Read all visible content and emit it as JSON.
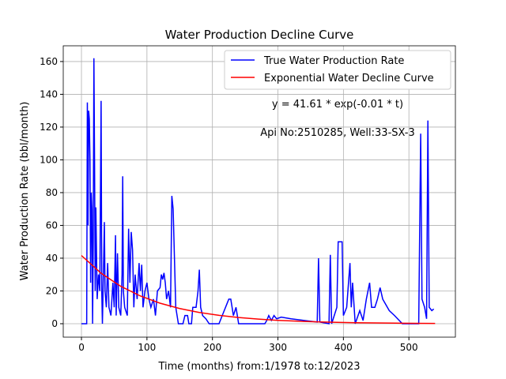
{
  "chart_data": {
    "type": "line",
    "title": "Water Production Decline Curve",
    "xlabel": "Time (months) from:1/1978 to:12/2023",
    "ylabel": "Water Production Rate (bbl/month)",
    "annotations": [
      "y = 41.61 * exp(-0.01 * t)",
      "Api No:2510285, Well:33-SX-3"
    ],
    "xlim": [
      -27.8,
      571
    ],
    "ylim": [
      -8.2,
      169.6
    ],
    "xticks": [
      0,
      100,
      200,
      300,
      400,
      500
    ],
    "yticks": [
      0,
      20,
      40,
      60,
      80,
      100,
      120,
      140,
      160
    ],
    "grid": true,
    "legend": "upper right",
    "series": [
      {
        "name": "True Water Production Rate",
        "color": "#0000ff",
        "x": [
          0,
          8,
          9,
          10,
          11,
          12,
          13,
          14,
          15,
          16,
          17,
          18,
          19,
          20,
          21,
          22,
          24,
          26,
          28,
          30,
          31,
          32,
          34,
          35,
          36,
          38,
          40,
          42,
          45,
          48,
          50,
          52,
          53,
          55,
          57,
          60,
          62,
          63,
          64,
          66,
          70,
          72,
          74,
          76,
          78,
          80,
          82,
          85,
          88,
          90,
          92,
          94,
          97,
          100,
          103,
          106,
          110,
          113,
          116,
          120,
          122,
          124,
          126,
          128,
          130,
          133,
          136,
          138,
          140,
          142,
          144,
          146,
          148,
          155,
          158,
          162,
          164,
          168,
          170,
          175,
          178,
          180,
          182,
          185,
          190,
          195,
          210,
          215,
          218,
          222,
          225,
          228,
          232,
          236,
          240,
          280,
          283,
          286,
          290,
          294,
          298,
          305,
          320,
          340,
          360,
          362,
          364,
          378,
          380,
          382,
          390,
          392,
          398,
          400,
          405,
          410,
          412,
          414,
          418,
          425,
          430,
          435,
          440,
          443,
          448,
          452,
          456,
          460,
          470,
          478,
          490,
          515,
          518,
          520,
          524,
          527,
          529,
          531,
          535,
          538
        ],
        "values": [
          0,
          0,
          135,
          60,
          130,
          125,
          100,
          25,
          80,
          70,
          0,
          50,
          162,
          100,
          20,
          71,
          15,
          30,
          20,
          136,
          20,
          0,
          40,
          62,
          20,
          10,
          37,
          10,
          5,
          25,
          10,
          54,
          5,
          43,
          10,
          5,
          30,
          90,
          20,
          10,
          5,
          58,
          25,
          56,
          45,
          10,
          30,
          15,
          37,
          20,
          36,
          10,
          20,
          25,
          15,
          10,
          15,
          5,
          20,
          22,
          30,
          27,
          31,
          25,
          15,
          20,
          10,
          78,
          70,
          40,
          10,
          5,
          0,
          0,
          5,
          5,
          0,
          0,
          10,
          10,
          20,
          33,
          10,
          5,
          3,
          0,
          0,
          5,
          8,
          12,
          15,
          15,
          5,
          10,
          0,
          0,
          2,
          5,
          2,
          5,
          3,
          4,
          3,
          2,
          1,
          40,
          1,
          0,
          42,
          0,
          10,
          50,
          50,
          5,
          10,
          37,
          10,
          25,
          0,
          8,
          2,
          15,
          25,
          10,
          10,
          15,
          22,
          15,
          8,
          5,
          0,
          0,
          116,
          15,
          10,
          3,
          124,
          10,
          8,
          9
        ]
      },
      {
        "name": "Exponential Water Decline Curve",
        "color": "#ff0000",
        "x": [
          0,
          30,
          60,
          90,
          120,
          150,
          180,
          210,
          240,
          270,
          300,
          330,
          360,
          390,
          420,
          450,
          480,
          510,
          540
        ],
        "values": [
          41.61,
          30.83,
          22.84,
          16.92,
          12.53,
          9.28,
          6.88,
          5.1,
          3.77,
          2.8,
          2.07,
          1.53,
          1.14,
          0.84,
          0.62,
          0.46,
          0.34,
          0.25,
          0.19
        ]
      }
    ]
  }
}
